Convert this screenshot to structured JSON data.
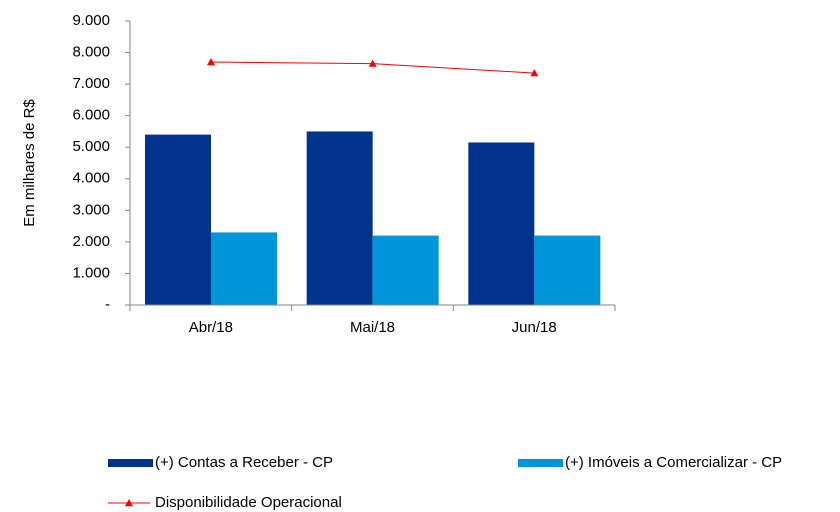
{
  "chart_data": {
    "type": "bar",
    "y_label": "Em milhares de R$",
    "categories": [
      "Abr/18",
      "Mai/18",
      "Jun/18"
    ],
    "series": [
      {
        "name": "(+) Contas a Receber - CP",
        "color": "#00338d",
        "values": [
          5400,
          5500,
          5150
        ]
      },
      {
        "name": "(+) Imóveis a Comercializar - CP",
        "color": "#0095d9",
        "values": [
          2300,
          2200,
          2200
        ]
      },
      {
        "name": "Disponibilidade Operacional",
        "color": "#ff0000",
        "type": "line",
        "values": [
          7700,
          7650,
          7350
        ]
      }
    ],
    "ylim": [
      0,
      9000
    ],
    "yticks": [
      {
        "value": 0,
        "label": "-"
      },
      {
        "value": 1000,
        "label": "1.000"
      },
      {
        "value": 2000,
        "label": "2.000"
      },
      {
        "value": 3000,
        "label": "3.000"
      },
      {
        "value": 4000,
        "label": "4.000"
      },
      {
        "value": 5000,
        "label": "5.000"
      },
      {
        "value": 6000,
        "label": "6.000"
      },
      {
        "value": 7000,
        "label": "7.000"
      },
      {
        "value": 8000,
        "label": "8.000"
      },
      {
        "value": 9000,
        "label": "9.000"
      }
    ],
    "grid": false
  }
}
